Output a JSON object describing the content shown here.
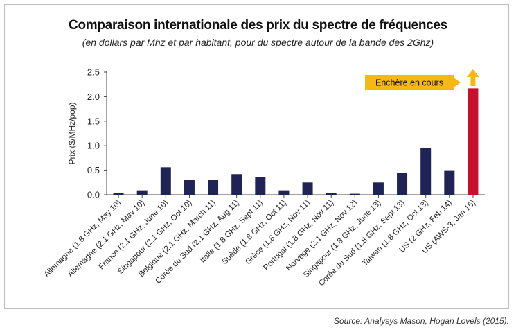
{
  "title": "Comparaison internationale des prix du spectre de fréquences",
  "subtitle": "(en dollars par Mhz et par habitant, pour du spectre autour de la bande des 2Ghz)",
  "source": "Source: Analysys Mason, Hogan Lovels (2015).",
  "chart_data": {
    "type": "bar",
    "ylabel": "Prix ($/MHz/pop)",
    "xlabel": "",
    "ylim": [
      0,
      2.5
    ],
    "yticks": [
      "0.0",
      "0.5",
      "1.0",
      "1.5",
      "2.0",
      "2.5"
    ],
    "categories": [
      "Allemagne (1.8 GHz, May 10)",
      "Allemagne (2.1 GHz, May 10)",
      "France (2.1 GHz, June 10)",
      "Singapour (2.1 GHz, Oct 10)",
      "Belgique (2.1 GHz, March 11)",
      "Corée du Sud (2.1 GHz, Aug 11)",
      "Italie (1.8 GHz, Sept 11)",
      "Suède (1.8 GHz, Oct 11)",
      "Grèce (1.8 GHz, Nov 11)",
      "Portugal (1.8 GHz, Nov 11)",
      "Norvège (2.1 GHz, Nov 12)",
      "Singapour (1.8 GHz, June 13)",
      "Corée du Sud (1.8 GHz, Sept 13)",
      "Taiwan (1.8 GHz, Oct 13)",
      "US (2 GHz, Feb 14)",
      "US (AWS-3, Jan 15)"
    ],
    "values": [
      0.03,
      0.09,
      0.56,
      0.3,
      0.31,
      0.42,
      0.36,
      0.09,
      0.25,
      0.04,
      0.02,
      0.25,
      0.45,
      0.96,
      0.5,
      2.17
    ],
    "bar_colors": [
      "#1f2356",
      "#1f2356",
      "#1f2356",
      "#1f2356",
      "#1f2356",
      "#1f2356",
      "#1f2356",
      "#1f2356",
      "#1f2356",
      "#1f2356",
      "#1f2356",
      "#1f2356",
      "#1f2356",
      "#1f2356",
      "#1f2356",
      "#c8102e"
    ],
    "annotation": {
      "text": "Enchère en cours",
      "box_color": "#f5b814",
      "arrow_color": "#f5b814"
    },
    "grid": false
  }
}
